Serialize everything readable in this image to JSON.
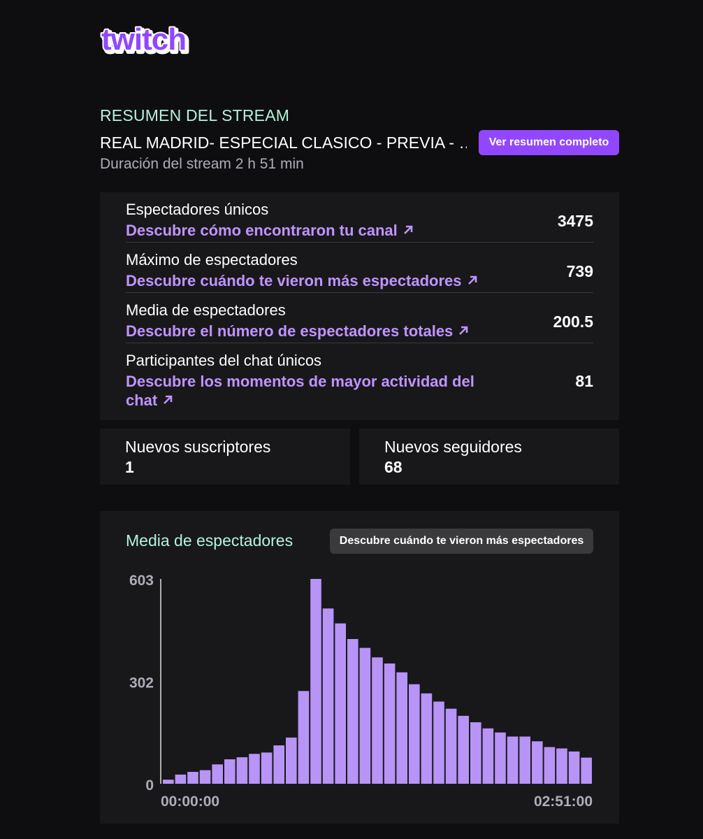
{
  "brand": {
    "logo_text": "twitch",
    "accent": "#9147ff",
    "link_color": "#bf94ff",
    "highlight_color": "#b5f2d9"
  },
  "summary": {
    "label": "RESUMEN DEL STREAM",
    "title": "REAL MADRID- ESPECIAL CLASICO - PREVIA - …",
    "duration": "Duración del stream 2 h 51 min",
    "button_label": "Ver resumen completo"
  },
  "stats": [
    {
      "label": "Espectadores únicos",
      "link": "Descubre cómo encontraron tu canal",
      "value": "3475"
    },
    {
      "label": "Máximo de espectadores",
      "link": "Descubre cuándo te vieron más espectadores",
      "value": "739"
    },
    {
      "label": "Media de espectadores",
      "link": "Descubre el número de espectadores totales",
      "value": "200.5"
    },
    {
      "label": "Participantes del chat únicos",
      "link_line1": "Descubre los momentos de mayor actividad del",
      "link_line2": "chat",
      "value": "81"
    }
  ],
  "mini": {
    "subs_label": "Nuevos suscriptores",
    "subs_value": "1",
    "followers_label": "Nuevos seguidores",
    "followers_value": "68"
  },
  "chart_card": {
    "title": "Media de espectadores",
    "button_label": "Descubre cuándo te vieron más espectadores"
  },
  "chart_data": {
    "type": "bar",
    "title": "Media de espectadores",
    "xlabel": "",
    "ylabel": "",
    "ylim": [
      0,
      603
    ],
    "y_ticks": [
      "0",
      "302",
      "603"
    ],
    "x_tick_labels": [
      "00:00:00",
      "02:51:00"
    ],
    "bar_color": "#b794f6",
    "values": [
      12,
      27,
      35,
      40,
      57,
      72,
      78,
      88,
      92,
      113,
      136,
      273,
      603,
      516,
      472,
      426,
      400,
      372,
      354,
      328,
      293,
      266,
      242,
      221,
      200,
      181,
      163,
      151,
      139,
      139,
      125,
      108,
      104,
      95,
      77
    ]
  }
}
